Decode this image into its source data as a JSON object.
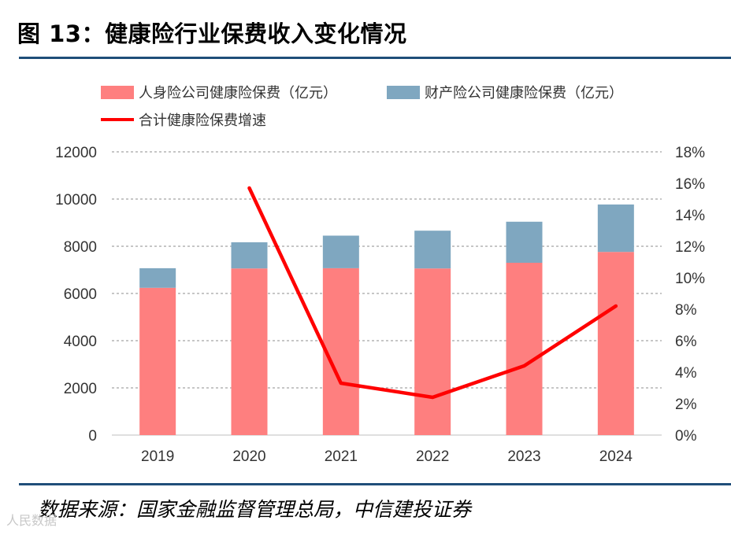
{
  "figure": {
    "title": "图 13：健康险行业保费收入变化情况",
    "source": "数据来源：国家金融监督管理总局，中信建投证券",
    "watermark": "人民数据"
  },
  "chart_data": {
    "type": "bar",
    "stacked": true,
    "categories": [
      "2019",
      "2020",
      "2021",
      "2022",
      "2023",
      "2024"
    ],
    "series": [
      {
        "name": "人身险公司健康险保费（亿元）",
        "kind": "bar",
        "axis": "left",
        "color": "#fe7f7f",
        "values": [
          6240,
          7060,
          7070,
          7060,
          7300,
          7760
        ]
      },
      {
        "name": "财产险公司健康险保费（亿元）",
        "kind": "bar",
        "axis": "left",
        "color": "#7fa7c0",
        "values": [
          830,
          1110,
          1380,
          1600,
          1740,
          2010
        ]
      },
      {
        "name": "合计健康险保费增速",
        "kind": "line",
        "axis": "right",
        "color": "#ff0000",
        "x": [
          "2020",
          "2021",
          "2022",
          "2023",
          "2024"
        ],
        "values": [
          15.7,
          3.3,
          2.4,
          4.4,
          8.2
        ]
      }
    ],
    "left_axis": {
      "min": 0,
      "max": 12000,
      "ticks": [
        "0",
        "2000",
        "4000",
        "6000",
        "8000",
        "10000",
        "12000"
      ]
    },
    "right_axis": {
      "min": 0,
      "max": 18,
      "ticks": [
        "0%",
        "2%",
        "4%",
        "6%",
        "8%",
        "10%",
        "12%",
        "14%",
        "16%",
        "18%"
      ]
    },
    "grid": true,
    "legend_position": "top"
  }
}
